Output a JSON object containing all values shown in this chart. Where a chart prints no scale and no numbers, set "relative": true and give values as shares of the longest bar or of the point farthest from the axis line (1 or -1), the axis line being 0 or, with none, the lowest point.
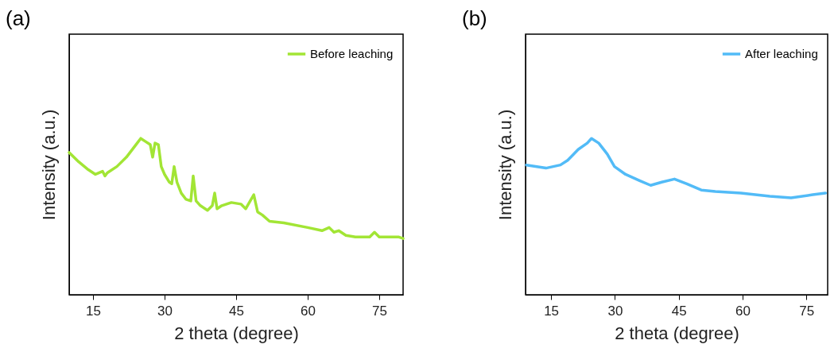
{
  "chart_data": [
    {
      "type": "line",
      "title": "(a)",
      "xlabel": "2 theta (degree)",
      "ylabel": "Intensity (a.u.)",
      "relative": true,
      "xlim": [
        10,
        80
      ],
      "xticks": [
        15,
        30,
        45,
        60,
        75
      ],
      "grid": false,
      "legend": "top right",
      "marker": "none",
      "series": [
        {
          "name": "Before leaching",
          "color": "#a2e535",
          "x": [
            10,
            12,
            14,
            15.5,
            17,
            17.5,
            18,
            20,
            22,
            24,
            25,
            26,
            27,
            27.5,
            28,
            28.7,
            29.3,
            30,
            31,
            31.5,
            32,
            32.6,
            33.5,
            34.5,
            35.5,
            36,
            36.6,
            37.5,
            39,
            40,
            40.5,
            41,
            42,
            44,
            46,
            47,
            48.7,
            49.5,
            50.5,
            52,
            55,
            60,
            63,
            64.5,
            65.5,
            66.5,
            68,
            70,
            73,
            74,
            75,
            77,
            79,
            80
          ],
          "values": [
            0.91,
            0.85,
            0.8,
            0.77,
            0.79,
            0.76,
            0.78,
            0.82,
            0.88,
            0.96,
            1,
            0.98,
            0.96,
            0.88,
            0.97,
            0.96,
            0.82,
            0.77,
            0.72,
            0.71,
            0.82,
            0.72,
            0.65,
            0.61,
            0.6,
            0.76,
            0.6,
            0.57,
            0.54,
            0.57,
            0.65,
            0.55,
            0.57,
            0.59,
            0.58,
            0.55,
            0.64,
            0.53,
            0.51,
            0.47,
            0.46,
            0.43,
            0.41,
            0.43,
            0.4,
            0.41,
            0.38,
            0.37,
            0.37,
            0.4,
            0.37,
            0.37,
            0.37,
            0.36
          ]
        }
      ]
    },
    {
      "type": "line",
      "title": "(b)",
      "xlabel": "2 theta (degree)",
      "ylabel": "Intensity (a.u.)",
      "relative": true,
      "xlim": [
        9,
        80
      ],
      "xticks": [
        15,
        30,
        45,
        60,
        75
      ],
      "grid": false,
      "legend": "top right",
      "marker": "none",
      "series": [
        {
          "name": "After leaching",
          "color": "#52bbf7",
          "x": [
            9.2,
            13.8,
            17.2,
            18.9,
            21.4,
            23.5,
            24.5,
            26.2,
            28.2,
            29.9,
            32.5,
            35.8,
            38.4,
            41,
            44,
            46.9,
            50.3,
            53.6,
            59.6,
            66.4,
            71.4,
            76.5,
            79.5
          ],
          "values": [
            0.83,
            0.81,
            0.83,
            0.86,
            0.93,
            0.97,
            1,
            0.97,
            0.9,
            0.82,
            0.77,
            0.73,
            0.7,
            0.72,
            0.74,
            0.71,
            0.67,
            0.66,
            0.65,
            0.63,
            0.62,
            0.64,
            0.65
          ]
        }
      ]
    }
  ]
}
